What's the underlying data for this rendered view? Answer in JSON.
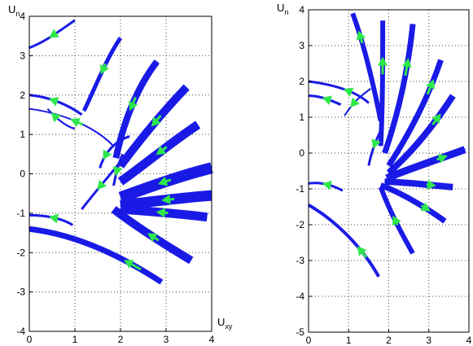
{
  "colors": {
    "trajectory": "#1a1ae6",
    "arrow": "#2ee84a",
    "grid": "#444444",
    "axis": "#000000"
  },
  "chart_data": [
    {
      "type": "line",
      "xlabel_main": "U",
      "xlabel_sub": "xy",
      "ylabel_main": "U",
      "ylabel_sub": "n",
      "xlim": [
        0,
        4
      ],
      "ylim": [
        -4,
        4
      ],
      "xticks": [
        "0",
        "1",
        "2",
        "3",
        "4"
      ],
      "yticks": [
        "-4",
        "-3",
        "-2",
        "-1",
        "0",
        "1",
        "2",
        "3",
        "4"
      ],
      "grid": true,
      "trajectories": [
        {
          "points": [
            [
              0.0,
              3.2
            ],
            [
              0.35,
              3.35
            ],
            [
              0.65,
              3.62
            ],
            [
              1.0,
              3.9
            ]
          ],
          "thick": 3,
          "arrows": [
            0.5
          ]
        },
        {
          "points": [
            [
              1.2,
              1.6
            ],
            [
              1.45,
              2.2
            ],
            [
              1.7,
              2.95
            ],
            [
              2.0,
              3.45
            ]
          ],
          "thick": 5,
          "arrows": [
            0.55
          ]
        },
        {
          "points": [
            [
              1.9,
              0.4
            ],
            [
              2.05,
              1.2
            ],
            [
              2.3,
              2.1
            ],
            [
              2.8,
              2.85
            ]
          ],
          "thick": 8,
          "arrows": [
            0.55
          ]
        },
        {
          "points": [
            [
              2.0,
              0.2
            ],
            [
              2.45,
              0.9
            ],
            [
              2.95,
              1.6
            ],
            [
              3.45,
              2.2
            ]
          ],
          "thick": 10,
          "arrows": [
            0.55
          ]
        },
        {
          "points": [
            [
              2.0,
              -0.2
            ],
            [
              2.55,
              0.25
            ],
            [
              3.05,
              0.75
            ],
            [
              3.7,
              1.25
            ]
          ],
          "thick": 11,
          "arrows": [
            0.55
          ]
        },
        {
          "points": [
            [
              2.0,
              -0.6
            ],
            [
              2.6,
              -0.35
            ],
            [
              3.3,
              -0.05
            ],
            [
              4.0,
              0.15
            ]
          ],
          "thick": 14,
          "arrows": [
            0.5
          ]
        },
        {
          "points": [
            [
              2.0,
              -0.8
            ],
            [
              2.7,
              -0.7
            ],
            [
              3.4,
              -0.6
            ],
            [
              4.0,
              -0.55
            ]
          ],
          "thick": 13,
          "arrows": [
            0.5
          ]
        },
        {
          "points": [
            [
              2.0,
              -0.9
            ],
            [
              2.6,
              -0.95
            ],
            [
              3.2,
              -1.0
            ],
            [
              3.9,
              -1.1
            ]
          ],
          "thick": 11,
          "arrows": [
            0.5
          ]
        },
        {
          "points": [
            [
              1.85,
              -0.9
            ],
            [
              2.3,
              -1.3
            ],
            [
              2.9,
              -1.75
            ],
            [
              3.55,
              -2.2
            ]
          ],
          "thick": 10,
          "arrows": [
            0.55
          ]
        },
        {
          "points": [
            [
              0.0,
              -1.4
            ],
            [
              1.1,
              -1.55
            ],
            [
              2.1,
              -2.15
            ],
            [
              2.9,
              -2.75
            ]
          ],
          "thick": 7,
          "arrows": [
            0.75
          ]
        },
        {
          "points": [
            [
              0.0,
              -1.05
            ],
            [
              0.4,
              -1.05
            ],
            [
              0.75,
              -1.15
            ],
            [
              0.95,
              -1.3
            ]
          ],
          "thick": 3,
          "arrows": [
            0.45
          ]
        },
        {
          "points": [
            [
              0.0,
              2.0
            ],
            [
              0.45,
              1.95
            ],
            [
              0.85,
              1.75
            ],
            [
              1.15,
              1.5
            ]
          ],
          "thick": 3,
          "arrows": [
            0.4
          ]
        },
        {
          "points": [
            [
              0.0,
              1.65
            ],
            [
              0.7,
              1.55
            ],
            [
              1.45,
              1.2
            ],
            [
              1.85,
              0.7
            ]
          ],
          "thick": 2,
          "arrows": [
            0.5
          ]
        },
        {
          "points": [
            [
              1.55,
              0.15
            ],
            [
              1.65,
              0.55
            ],
            [
              1.9,
              0.85
            ],
            [
              2.2,
              0.95
            ]
          ],
          "thick": 3,
          "arrows": [
            0.25
          ]
        },
        {
          "points": [
            [
              1.15,
              -0.9
            ],
            [
              1.45,
              -0.45
            ],
            [
              1.75,
              -0.05
            ],
            [
              2.0,
              0.3
            ]
          ],
          "thick": 3,
          "arrows": [
            0.45
          ]
        },
        {
          "points": [
            [
              1.85,
              -0.3
            ],
            [
              1.9,
              0.0
            ],
            [
              1.95,
              0.25
            ],
            [
              2.05,
              0.5
            ]
          ],
          "thick": 3,
          "arrows": [
            0.35
          ]
        },
        {
          "points": [
            [
              0.4,
              1.65
            ],
            [
              0.6,
              1.4
            ],
            [
              0.8,
              1.2
            ],
            [
              1.0,
              1.15
            ]
          ],
          "thick": 2,
          "arrows": [
            0.2
          ]
        }
      ]
    },
    {
      "type": "line",
      "ylabel_main": "U",
      "ylabel_sub": "n",
      "xlim": [
        0,
        4
      ],
      "ylim": [
        -5,
        4
      ],
      "xticks": [
        "0",
        "1",
        "2",
        "3",
        "4"
      ],
      "yticks": [
        "-5",
        "-4",
        "-3",
        "-2",
        "-1",
        "0",
        "1",
        "2",
        "3",
        "4"
      ],
      "grid": true,
      "trajectories": [
        {
          "points": [
            [
              1.1,
              3.9
            ],
            [
              1.3,
              3.3
            ],
            [
              1.55,
              2.3
            ],
            [
              1.8,
              0.9
            ]
          ],
          "thick": 6,
          "arrows": [
            0.3
          ]
        },
        {
          "points": [
            [
              1.85,
              3.7
            ],
            [
              1.85,
              2.5
            ],
            [
              1.85,
              1.3
            ],
            [
              1.8,
              0.2
            ]
          ],
          "thick": 6,
          "arrows": [
            0.35
          ]
        },
        {
          "points": [
            [
              2.6,
              3.6
            ],
            [
              2.5,
              2.5
            ],
            [
              2.3,
              1.3
            ],
            [
              1.9,
              0.0
            ]
          ],
          "thick": 7,
          "arrows": [
            0.35
          ]
        },
        {
          "points": [
            [
              3.3,
              2.6
            ],
            [
              3.0,
              1.6
            ],
            [
              2.55,
              0.6
            ],
            [
              2.0,
              -0.35
            ]
          ],
          "thick": 7,
          "arrows": [
            0.25
          ]
        },
        {
          "points": [
            [
              3.6,
              1.6
            ],
            [
              3.2,
              0.9
            ],
            [
              2.65,
              0.1
            ],
            [
              2.0,
              -0.55
            ]
          ],
          "thick": 8,
          "arrows": [
            0.3
          ]
        },
        {
          "points": [
            [
              3.9,
              0.1
            ],
            [
              3.3,
              -0.15
            ],
            [
              2.6,
              -0.4
            ],
            [
              1.95,
              -0.7
            ]
          ],
          "thick": 9,
          "arrows": [
            0.3
          ]
        },
        {
          "points": [
            [
              3.6,
              -0.95
            ],
            [
              3.0,
              -0.9
            ],
            [
              2.4,
              -0.8
            ],
            [
              1.9,
              -0.8
            ]
          ],
          "thick": 8,
          "arrows": [
            0.3
          ]
        },
        {
          "points": [
            [
              3.4,
              -1.9
            ],
            [
              2.9,
              -1.5
            ],
            [
              2.3,
              -1.1
            ],
            [
              1.8,
              -0.9
            ]
          ],
          "thick": 7,
          "arrows": [
            0.3
          ]
        },
        {
          "points": [
            [
              1.8,
              -0.95
            ],
            [
              2.05,
              -1.7
            ],
            [
              2.35,
              -2.3
            ],
            [
              2.6,
              -2.8
            ]
          ],
          "thick": 6,
          "arrows": [
            0.45
          ]
        },
        {
          "points": [
            [
              0.0,
              -1.45
            ],
            [
              0.7,
              -1.9
            ],
            [
              1.35,
              -2.65
            ],
            [
              1.75,
              -3.45
            ]
          ],
          "thick": 4,
          "arrows": [
            0.7
          ]
        },
        {
          "points": [
            [
              0.0,
              2.0
            ],
            [
              0.7,
              1.9
            ],
            [
              1.2,
              1.7
            ],
            [
              1.5,
              1.4
            ]
          ],
          "thick": 3,
          "arrows": [
            0.55
          ]
        },
        {
          "points": [
            [
              0.0,
              1.6
            ],
            [
              0.3,
              1.6
            ],
            [
              0.6,
              1.45
            ],
            [
              0.8,
              1.35
            ]
          ],
          "thick": 3,
          "arrows": [
            0.45
          ]
        },
        {
          "points": [
            [
              0.0,
              -0.85
            ],
            [
              0.3,
              -0.8
            ],
            [
              0.6,
              -0.9
            ],
            [
              0.85,
              -1.05
            ]
          ],
          "thick": 3,
          "arrows": [
            0.45
          ]
        },
        {
          "points": [
            [
              0.9,
              1.05
            ],
            [
              1.1,
              1.4
            ],
            [
              1.3,
              1.6
            ],
            [
              1.55,
              1.8
            ]
          ],
          "thick": 2,
          "arrows": [
            0.3
          ]
        },
        {
          "points": [
            [
              1.5,
              -0.35
            ],
            [
              1.6,
              0.2
            ],
            [
              1.75,
              0.5
            ],
            [
              1.85,
              0.75
            ]
          ],
          "thick": 3,
          "arrows": [
            0.4
          ]
        }
      ]
    }
  ]
}
